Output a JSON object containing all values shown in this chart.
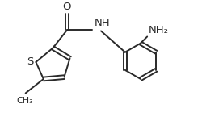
{
  "bg_color": "#ffffff",
  "line_color": "#2a2a2a",
  "line_width": 1.4,
  "font_size": 9.5,
  "figsize": [
    2.5,
    1.5
  ],
  "dpi": 100,
  "xlim": [
    0,
    10
  ],
  "ylim": [
    0,
    6
  ]
}
